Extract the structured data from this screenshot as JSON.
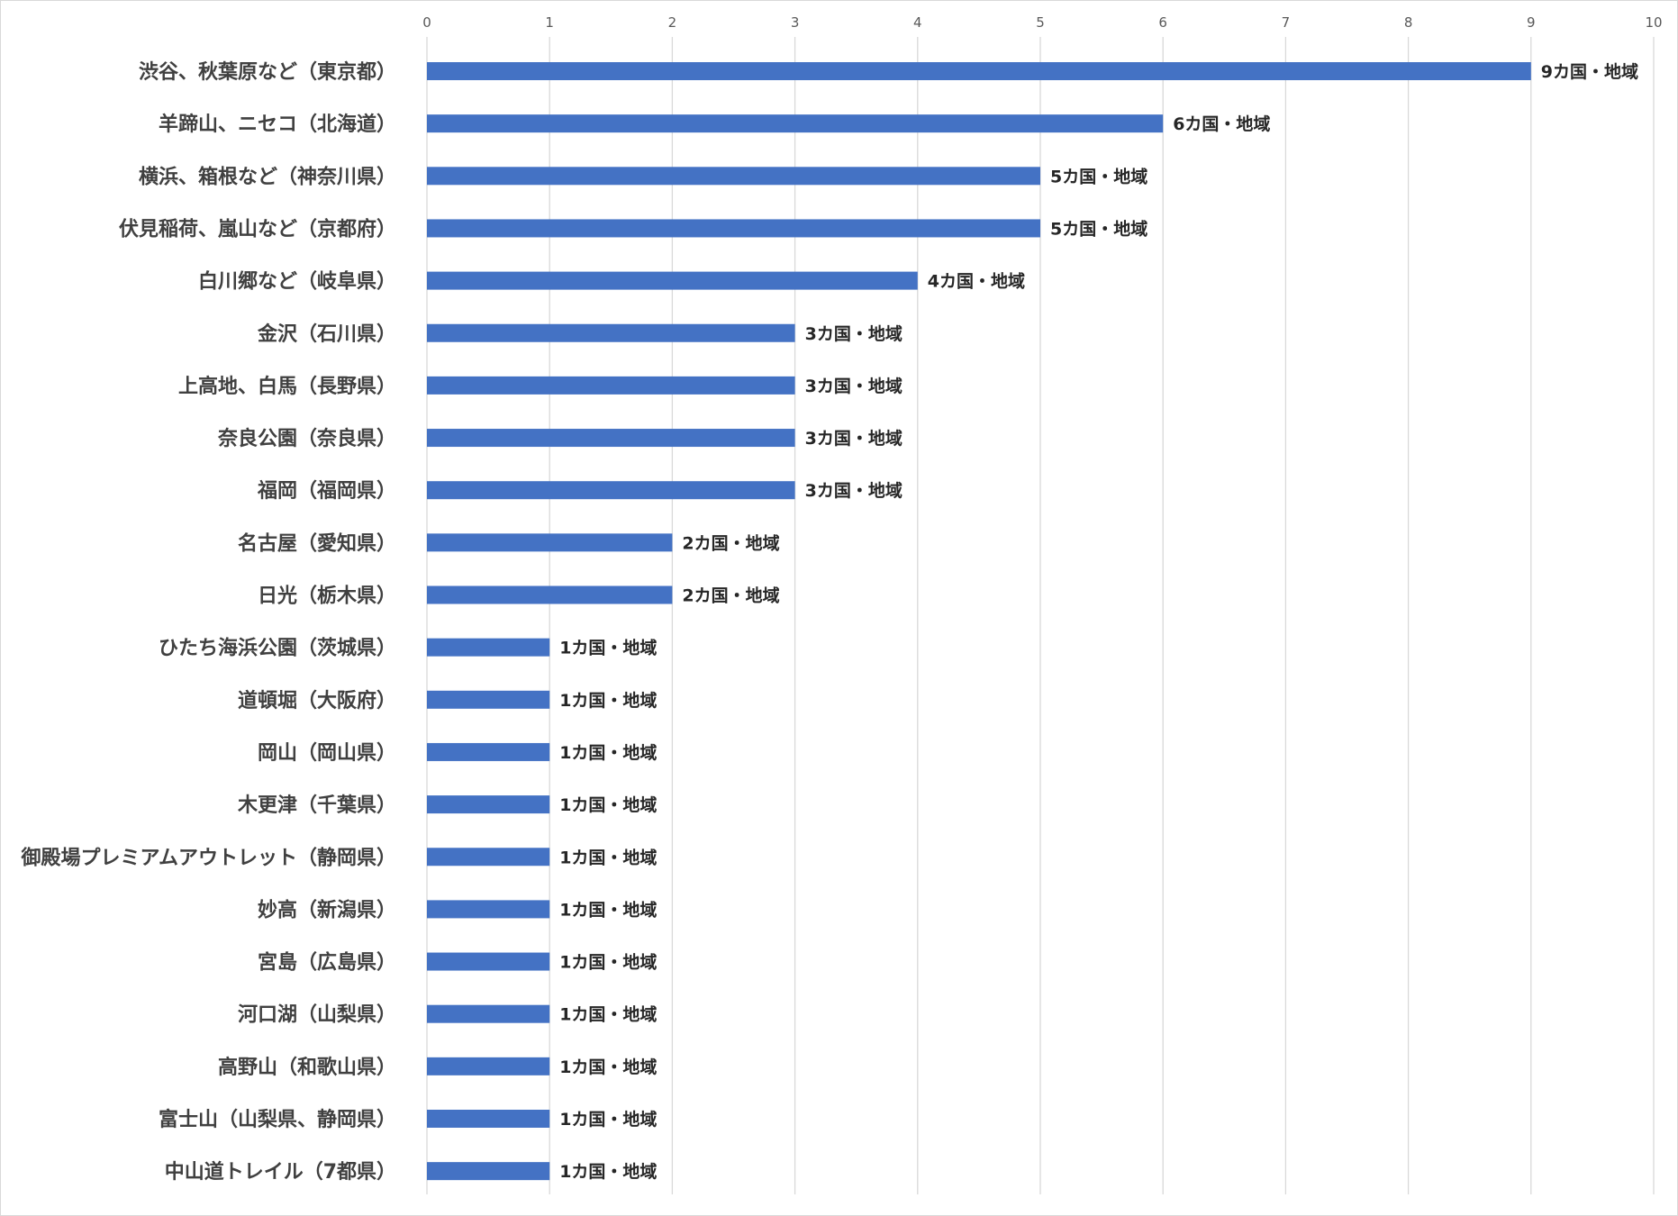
{
  "chart_data": {
    "type": "bar",
    "orientation": "horizontal",
    "title": "",
    "xlabel": "",
    "ylabel": "",
    "xlim": [
      0,
      10
    ],
    "x_ticks": [
      "0",
      "1",
      "2",
      "3",
      "4",
      "5",
      "6",
      "7",
      "8",
      "9",
      "10"
    ],
    "x_axis_position": "top",
    "grid": true,
    "legend": "none",
    "bar_color": "#4472C4",
    "value_label_suffix": "カ国・地域",
    "categories": [
      "渋谷、秋葉原など（東京都）",
      "羊蹄山、ニセコ（北海道）",
      "横浜、箱根など（神奈川県）",
      "伏見稲荷、嵐山など（京都府）",
      "白川郷など（岐阜県）",
      "金沢（石川県）",
      "上高地、白馬（長野県）",
      "奈良公園（奈良県）",
      "福岡（福岡県）",
      "名古屋（愛知県）",
      "日光（栃木県）",
      "ひたち海浜公園（茨城県）",
      "道頓堀（大阪府）",
      "岡山（岡山県）",
      "木更津（千葉県）",
      "御殿場プレミアムアウトレット（静岡県）",
      "妙高（新潟県）",
      "宮島（広島県）",
      "河口湖（山梨県）",
      "高野山（和歌山県）",
      "富士山（山梨県、静岡県）",
      "中山道トレイル（7都県）"
    ],
    "values": [
      9,
      6,
      5,
      5,
      4,
      3,
      3,
      3,
      3,
      2,
      2,
      1,
      1,
      1,
      1,
      1,
      1,
      1,
      1,
      1,
      1,
      1
    ],
    "data_labels": [
      "9カ国・地域",
      "6カ国・地域",
      "5カ国・地域",
      "5カ国・地域",
      "4カ国・地域",
      "3カ国・地域",
      "3カ国・地域",
      "3カ国・地域",
      "3カ国・地域",
      "2カ国・地域",
      "2カ国・地域",
      "1カ国・地域",
      "1カ国・地域",
      "1カ国・地域",
      "1カ国・地域",
      "1カ国・地域",
      "1カ国・地域",
      "1カ国・地域",
      "1カ国・地域",
      "1カ国・地域",
      "1カ国・地域",
      "1カ国・地域"
    ]
  }
}
